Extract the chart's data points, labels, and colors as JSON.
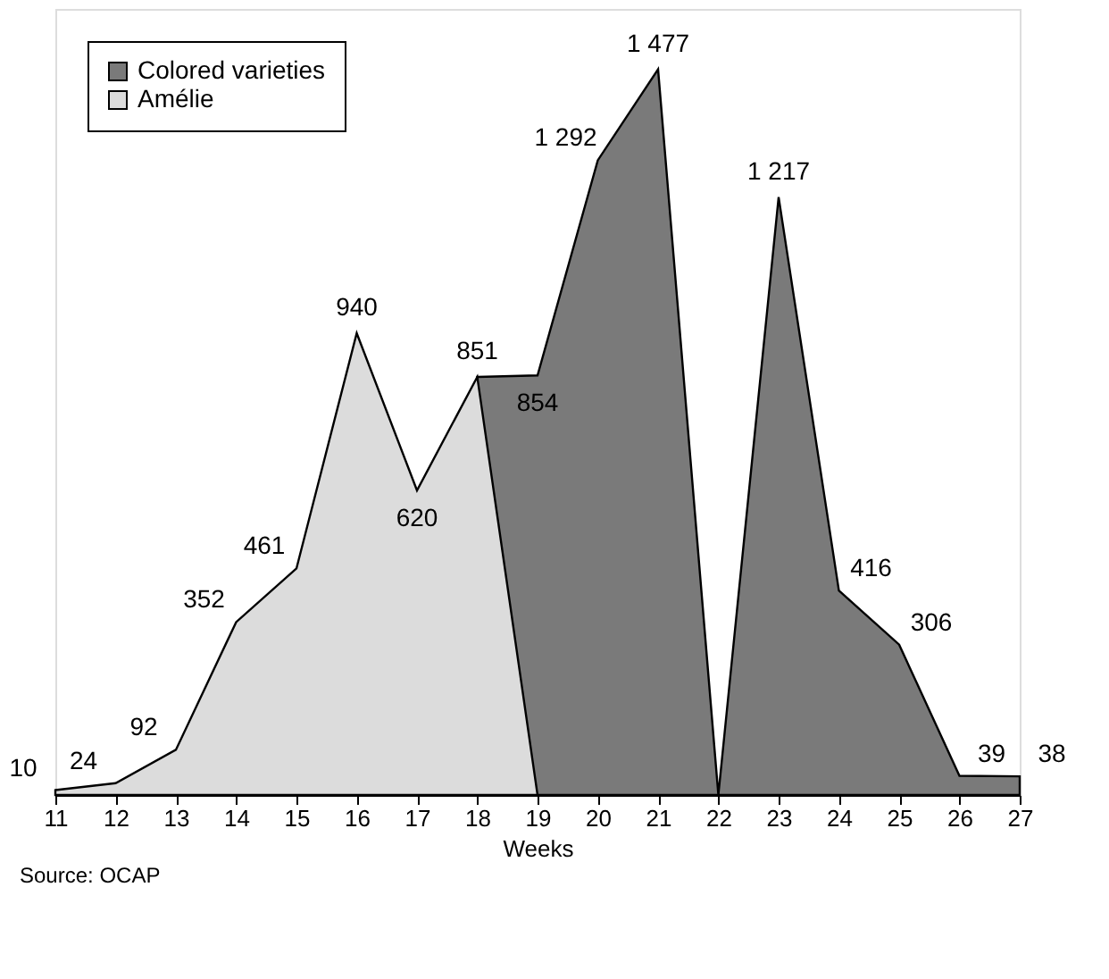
{
  "chart_data": {
    "type": "area",
    "xlabel": "Weeks",
    "xlim": [
      11,
      27
    ],
    "xticks": [
      11,
      12,
      13,
      14,
      15,
      16,
      17,
      18,
      19,
      20,
      21,
      22,
      23,
      24,
      25,
      26,
      27
    ],
    "legend": "top left",
    "grid": false,
    "tick_labels": "x",
    "annotations": [
      "Source: OCAP"
    ],
    "series": [
      {
        "name": "Colored varieties",
        "color": "#7a7a7a",
        "x": [
          18,
          19,
          20,
          21,
          22,
          23,
          24,
          25,
          26,
          27
        ],
        "values": [
          851,
          854,
          1292,
          1477,
          0,
          1217,
          416,
          306,
          39,
          38
        ],
        "value_labels": [
          null,
          "854",
          "1 292",
          "1 477",
          null,
          "1 217",
          "416",
          "306",
          "39",
          "38"
        ]
      },
      {
        "name": "Amélie",
        "color": "#dcdcdc",
        "x": [
          11,
          12,
          13,
          14,
          15,
          16,
          17,
          18,
          19
        ],
        "values": [
          10,
          24,
          92,
          352,
          461,
          940,
          620,
          851,
          0
        ],
        "value_labels": [
          "10",
          "24",
          "92",
          "352",
          "461",
          "940",
          "620",
          "851",
          null
        ]
      }
    ]
  }
}
